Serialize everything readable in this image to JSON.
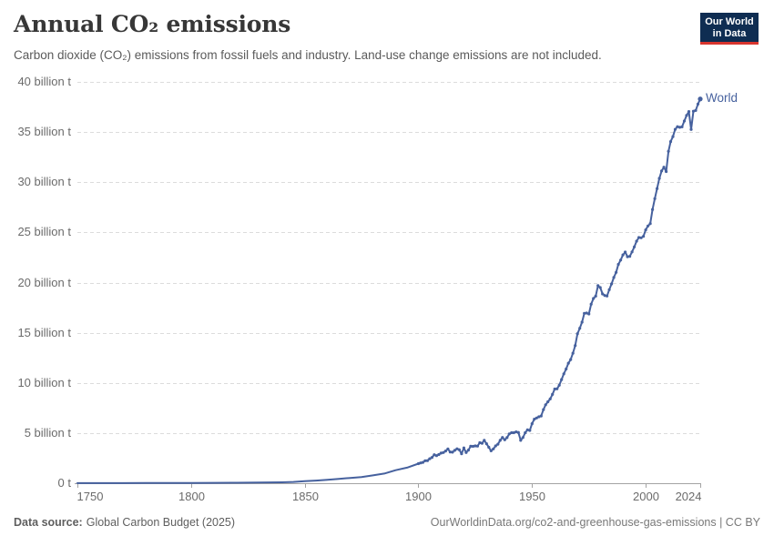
{
  "header": {
    "title": "Annual CO₂ emissions",
    "subtitle": "Carbon dioxide (CO₂) emissions from fossil fuels and industry. Land-use change emissions are not included.",
    "logo": {
      "line1": "Our World",
      "line2": "in Data",
      "bg_color": "#0f2d52",
      "accent_color": "#d8352e"
    }
  },
  "footer": {
    "source_label": "Data source:",
    "source_value": "Global Carbon Budget (2025)",
    "credit": "OurWorldinData.org/co2-and-greenhouse-gas-emissions | CC BY"
  },
  "chart_data": {
    "type": "line",
    "title": "Annual CO₂ emissions",
    "subtitle": "Carbon dioxide (CO₂) emissions from fossil fuels and industry. Land-use change emissions are not included.",
    "unit": "billion t",
    "xlim": [
      1750,
      2024
    ],
    "ylim": [
      0,
      40
    ],
    "grid": "dashed-horizontal",
    "legend": "end-of-line-label",
    "x_ticks": [
      1750,
      1800,
      1850,
      1900,
      1950,
      2000,
      2024
    ],
    "y_ticks": [
      {
        "value": 0,
        "label": "0 t"
      },
      {
        "value": 5,
        "label": "5 billion t"
      },
      {
        "value": 10,
        "label": "10 billion t"
      },
      {
        "value": 15,
        "label": "15 billion t"
      },
      {
        "value": 20,
        "label": "20 billion t"
      },
      {
        "value": 25,
        "label": "25 billion t"
      },
      {
        "value": 30,
        "label": "30 billion t"
      },
      {
        "value": 35,
        "label": "35 billion t"
      },
      {
        "value": 40,
        "label": "40 billion t"
      }
    ],
    "series": [
      {
        "name": "World",
        "color": "#46619e",
        "points": [
          [
            1750,
            0.0094
          ],
          [
            1760,
            0.011
          ],
          [
            1770,
            0.013
          ],
          [
            1780,
            0.016
          ],
          [
            1790,
            0.02
          ],
          [
            1800,
            0.03
          ],
          [
            1810,
            0.035
          ],
          [
            1820,
            0.045
          ],
          [
            1830,
            0.06
          ],
          [
            1840,
            0.09
          ],
          [
            1845,
            0.13
          ],
          [
            1850,
            0.2
          ],
          [
            1855,
            0.26
          ],
          [
            1860,
            0.34
          ],
          [
            1865,
            0.43
          ],
          [
            1870,
            0.53
          ],
          [
            1875,
            0.62
          ],
          [
            1880,
            0.78
          ],
          [
            1885,
            0.96
          ],
          [
            1890,
            1.3
          ],
          [
            1895,
            1.55
          ],
          [
            1900,
            1.95
          ],
          [
            1901,
            2.02
          ],
          [
            1902,
            2.08
          ],
          [
            1903,
            2.24
          ],
          [
            1904,
            2.25
          ],
          [
            1905,
            2.44
          ],
          [
            1906,
            2.57
          ],
          [
            1907,
            2.84
          ],
          [
            1908,
            2.75
          ],
          [
            1909,
            2.86
          ],
          [
            1910,
            3.0
          ],
          [
            1911,
            3.06
          ],
          [
            1912,
            3.21
          ],
          [
            1913,
            3.41
          ],
          [
            1914,
            3.11
          ],
          [
            1915,
            3.09
          ],
          [
            1916,
            3.27
          ],
          [
            1917,
            3.43
          ],
          [
            1918,
            3.34
          ],
          [
            1919,
            2.94
          ],
          [
            1920,
            3.52
          ],
          [
            1921,
            3.06
          ],
          [
            1922,
            3.3
          ],
          [
            1923,
            3.68
          ],
          [
            1924,
            3.67
          ],
          [
            1925,
            3.72
          ],
          [
            1926,
            3.7
          ],
          [
            1927,
            4.04
          ],
          [
            1928,
            3.98
          ],
          [
            1929,
            4.27
          ],
          [
            1930,
            3.94
          ],
          [
            1931,
            3.58
          ],
          [
            1932,
            3.23
          ],
          [
            1933,
            3.42
          ],
          [
            1934,
            3.72
          ],
          [
            1935,
            3.89
          ],
          [
            1936,
            4.27
          ],
          [
            1937,
            4.56
          ],
          [
            1938,
            4.33
          ],
          [
            1939,
            4.54
          ],
          [
            1940,
            4.92
          ],
          [
            1941,
            5.03
          ],
          [
            1942,
            5.03
          ],
          [
            1943,
            5.12
          ],
          [
            1944,
            5.06
          ],
          [
            1945,
            4.27
          ],
          [
            1946,
            4.55
          ],
          [
            1947,
            5.03
          ],
          [
            1948,
            5.32
          ],
          [
            1949,
            5.26
          ],
          [
            1950,
            5.93
          ],
          [
            1951,
            6.39
          ],
          [
            1952,
            6.5
          ],
          [
            1953,
            6.62
          ],
          [
            1954,
            6.7
          ],
          [
            1955,
            7.34
          ],
          [
            1956,
            7.82
          ],
          [
            1957,
            8.12
          ],
          [
            1958,
            8.4
          ],
          [
            1959,
            8.85
          ],
          [
            1960,
            9.39
          ],
          [
            1961,
            9.41
          ],
          [
            1962,
            9.77
          ],
          [
            1963,
            10.33
          ],
          [
            1964,
            10.9
          ],
          [
            1965,
            11.38
          ],
          [
            1966,
            11.96
          ],
          [
            1967,
            12.33
          ],
          [
            1968,
            12.96
          ],
          [
            1969,
            13.72
          ],
          [
            1970,
            14.9
          ],
          [
            1971,
            15.45
          ],
          [
            1972,
            16.05
          ],
          [
            1973,
            16.93
          ],
          [
            1974,
            16.96
          ],
          [
            1975,
            16.87
          ],
          [
            1976,
            17.85
          ],
          [
            1977,
            18.41
          ],
          [
            1978,
            18.65
          ],
          [
            1979,
            19.69
          ],
          [
            1980,
            19.5
          ],
          [
            1981,
            18.87
          ],
          [
            1982,
            18.71
          ],
          [
            1983,
            18.66
          ],
          [
            1984,
            19.29
          ],
          [
            1985,
            19.86
          ],
          [
            1986,
            20.51
          ],
          [
            1987,
            21.02
          ],
          [
            1988,
            21.81
          ],
          [
            1989,
            22.24
          ],
          [
            1990,
            22.76
          ],
          [
            1991,
            23.04
          ],
          [
            1992,
            22.58
          ],
          [
            1993,
            22.61
          ],
          [
            1994,
            23.06
          ],
          [
            1995,
            23.56
          ],
          [
            1996,
            24.13
          ],
          [
            1997,
            24.49
          ],
          [
            1998,
            24.46
          ],
          [
            1999,
            24.61
          ],
          [
            2000,
            25.25
          ],
          [
            2001,
            25.64
          ],
          [
            2002,
            25.88
          ],
          [
            2003,
            27.28
          ],
          [
            2004,
            28.36
          ],
          [
            2005,
            29.37
          ],
          [
            2006,
            30.39
          ],
          [
            2007,
            31.13
          ],
          [
            2008,
            31.5
          ],
          [
            2009,
            31.07
          ],
          [
            2010,
            33.08
          ],
          [
            2011,
            34.05
          ],
          [
            2012,
            34.55
          ],
          [
            2013,
            35.27
          ],
          [
            2014,
            35.54
          ],
          [
            2015,
            35.47
          ],
          [
            2016,
            35.52
          ],
          [
            2017,
            36.1
          ],
          [
            2018,
            36.65
          ],
          [
            2019,
            37.04
          ],
          [
            2020,
            35.26
          ],
          [
            2021,
            37.08
          ],
          [
            2022,
            37.15
          ],
          [
            2023,
            37.79
          ],
          [
            2024,
            38.3
          ]
        ]
      }
    ]
  }
}
